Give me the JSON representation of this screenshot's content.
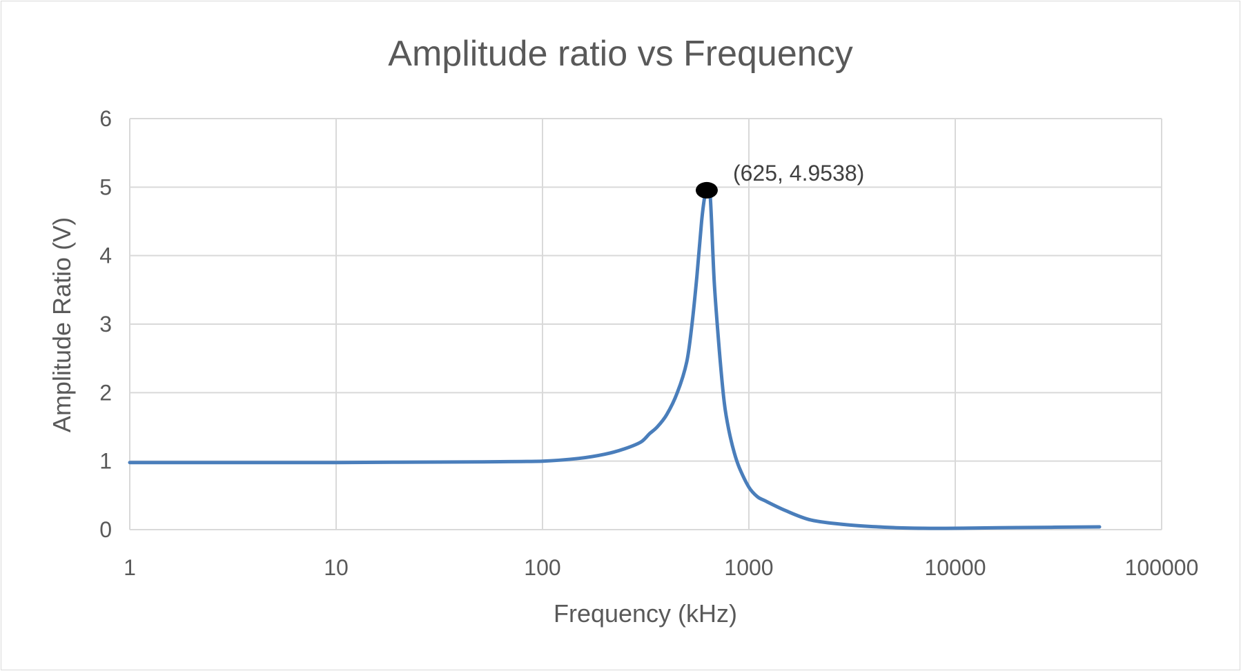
{
  "chart_data": {
    "type": "line",
    "title": "Amplitude ratio vs Frequency",
    "xlabel": "Frequency (kHz)",
    "ylabel": "Amplitude Ratio (V)",
    "x_scale": "log",
    "xlim": [
      1,
      100000
    ],
    "ylim": [
      0,
      6
    ],
    "x_ticks": [
      "1",
      "10",
      "100",
      "1000",
      "10000",
      "100000"
    ],
    "y_ticks": [
      "0",
      "1",
      "2",
      "3",
      "4",
      "5",
      "6"
    ],
    "grid": true,
    "legend": "none",
    "series_color": "#4a7ebb",
    "series": [
      {
        "x": [
          1,
          2,
          5,
          10,
          20,
          50,
          100,
          150,
          200,
          250,
          300,
          330,
          360,
          400,
          450,
          500,
          530,
          560,
          590,
          610,
          625,
          650,
          680,
          720,
          760,
          800,
          850,
          900,
          1000,
          1100,
          1200,
          1500,
          2000,
          3000,
          5000,
          7000,
          10000,
          20000,
          50000
        ],
        "y": [
          0.98,
          0.98,
          0.98,
          0.98,
          0.985,
          0.99,
          1.0,
          1.04,
          1.1,
          1.18,
          1.28,
          1.4,
          1.5,
          1.68,
          2.0,
          2.45,
          3.0,
          3.7,
          4.5,
          4.85,
          4.9538,
          4.85,
          3.6,
          2.6,
          1.85,
          1.45,
          1.12,
          0.9,
          0.62,
          0.48,
          0.42,
          0.28,
          0.14,
          0.07,
          0.03,
          0.02,
          0.02,
          0.03,
          0.04
        ]
      }
    ],
    "highlight_point": {
      "x": 625,
      "y": 4.9538,
      "label": "(625, 4.9538)"
    }
  }
}
